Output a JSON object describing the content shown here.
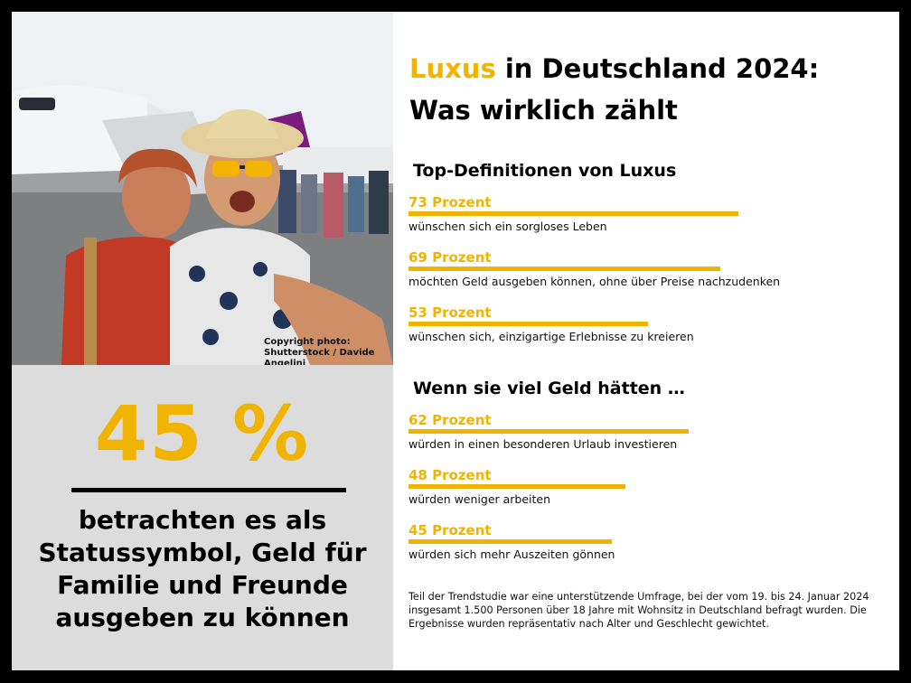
{
  "title": {
    "accent": "Luxus",
    "rest": " in Deutschland 2024:",
    "line2": "Was wirklich zählt"
  },
  "photo": {
    "copyright_line1": "Copyright photo:",
    "copyright_line2": "Shutterstock / Davide Angelini"
  },
  "highlight": {
    "value": "45 %",
    "text": "betrachten es als Statussymbol, Geld für Familie und Freunde ausgeben zu können"
  },
  "colors": {
    "accent": "#f0b400",
    "panel": "#dcdcdc",
    "frame": "#000000"
  },
  "chart_data": [
    {
      "type": "bar",
      "title": "Top-Definitionen von Luxus",
      "categories": [
        "wünschen sich ein sorgloses Leben",
        "möchten Geld ausgeben können, ohne über Preise nachzudenken",
        "wünschen sich, einzigartige Erlebnisse zu kreieren"
      ],
      "labels": [
        "73 Prozent",
        "69 Prozent",
        "53 Prozent"
      ],
      "values": [
        73,
        69,
        53
      ],
      "unit": "Prozent"
    },
    {
      "type": "bar",
      "title": "Wenn sie viel Geld hätten …",
      "categories": [
        "würden in einen besonderen Urlaub investieren",
        "würden weniger arbeiten",
        "würden sich mehr Auszeiten gönnen"
      ],
      "labels": [
        "62 Prozent",
        "48 Prozent",
        "45 Prozent"
      ],
      "values": [
        62,
        48,
        45
      ],
      "unit": "Prozent"
    }
  ],
  "footnote": "Teil der Trendstudie war eine unterstützende Umfrage, bei der vom 19. bis 24. Januar 2024 insgesamt 1.500 Personen über 18 Jahre mit Wohnsitz in Deutschland befragt wurden. Die Ergebnisse wurden repräsentativ nach Alter und Geschlecht gewichtet."
}
